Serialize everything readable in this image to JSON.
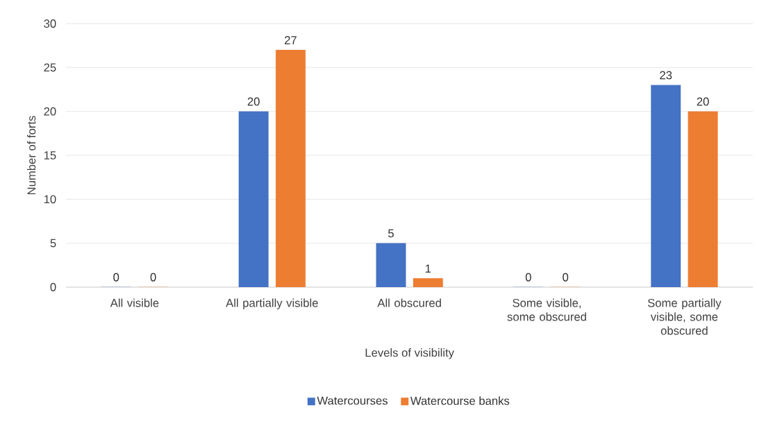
{
  "chart_data": {
    "type": "bar",
    "xlabel": "Levels of visibility",
    "ylabel": "Number of forts",
    "categories": [
      "All visible",
      "All partially visible",
      "All obscured",
      "Some visible, some obscured",
      "Some partially visible, some obscured"
    ],
    "series": [
      {
        "name": "Watercourses",
        "color": "#4472c4",
        "values": [
          0,
          20,
          5,
          0,
          23
        ]
      },
      {
        "name": "Watercourse banks",
        "color": "#ed7d31",
        "values": [
          0,
          27,
          1,
          0,
          20
        ]
      }
    ],
    "ylim": [
      0,
      30
    ],
    "yticks": [
      0,
      5,
      10,
      15,
      20,
      25,
      30
    ],
    "grid": "y",
    "legend": "bottom",
    "data_labels": true
  }
}
